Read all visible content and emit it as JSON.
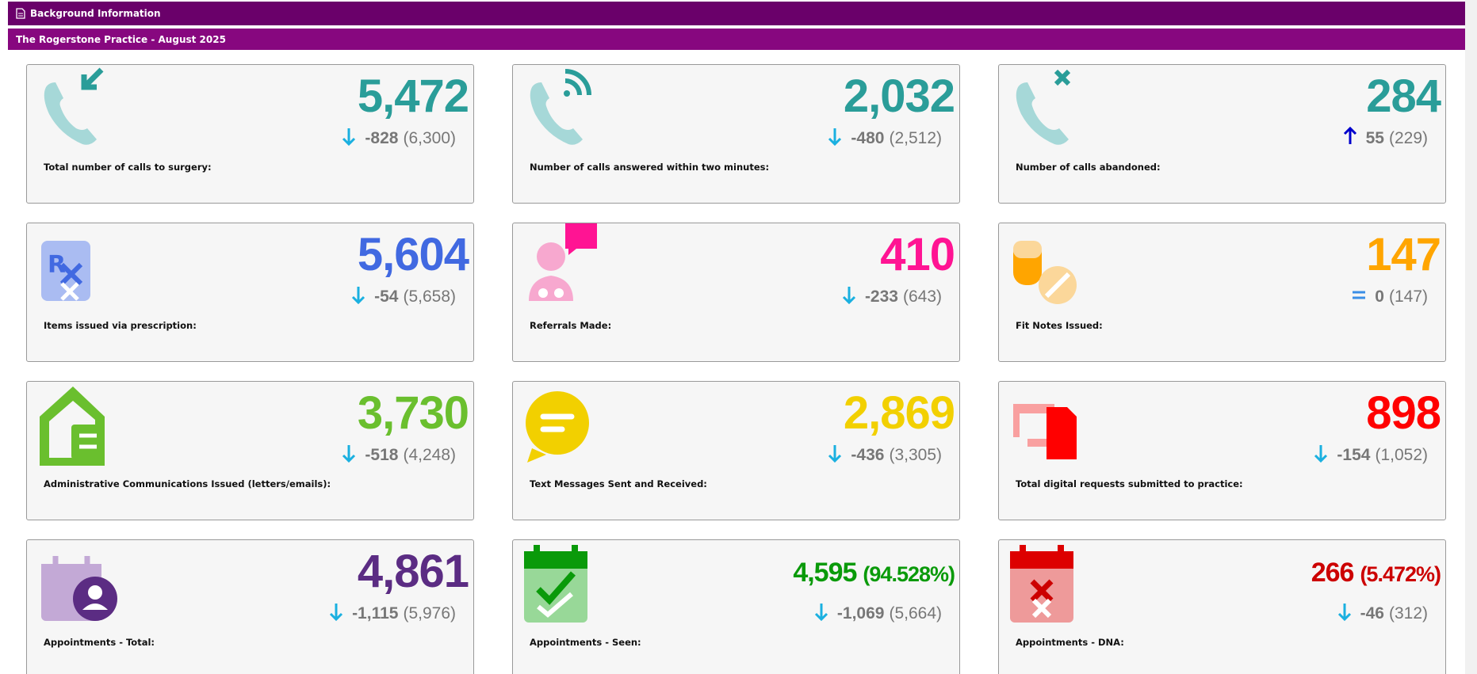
{
  "header": {
    "title": "Background Information",
    "subtitle": "The Rogerstone Practice - August 2025"
  },
  "cards": [
    {
      "label": "Total number of calls to surgery:",
      "value": "5,472",
      "change": "-828",
      "previous": "(6,300)",
      "trend": "down",
      "color": "#2a9d99"
    },
    {
      "label": "Number of calls answered within two minutes:",
      "value": "2,032",
      "change": "-480",
      "previous": "(2,512)",
      "trend": "down",
      "color": "#2a9d99"
    },
    {
      "label": "Number of calls abandoned:",
      "value": "284",
      "change": "55",
      "previous": "(229)",
      "trend": "up",
      "color": "#2a9d99"
    },
    {
      "label": "Items issued via prescription:",
      "value": "5,604",
      "change": "-54",
      "previous": "(5,658)",
      "trend": "down",
      "color": "#4169e1"
    },
    {
      "label": "Referrals Made:",
      "value": "410",
      "change": "-233",
      "previous": "(643)",
      "trend": "down",
      "color": "#ff1493"
    },
    {
      "label": "Fit Notes Issued:",
      "value": "147",
      "change": "0",
      "previous": "(147)",
      "trend": "equal",
      "color": "#ffa500"
    },
    {
      "label": "Administrative Communications Issued (letters/emails):",
      "value": "3,730",
      "change": "-518",
      "previous": "(4,248)",
      "trend": "down",
      "color": "#6abf2e"
    },
    {
      "label": "Text Messages Sent and Received:",
      "value": "2,869",
      "change": "-436",
      "previous": "(3,305)",
      "trend": "down",
      "color": "#f2d000"
    },
    {
      "label": "Total digital requests submitted to practice:",
      "value": "898",
      "change": "-154",
      "previous": "(1,052)",
      "trend": "down",
      "color": "#ff0000"
    },
    {
      "label": "Appointments - Total:",
      "value": "4,861",
      "change": "-1,115",
      "previous": "(5,976)",
      "trend": "down",
      "color": "#5b2c83"
    },
    {
      "label": "Appointments - Seen:",
      "value": "4,595",
      "percent": "(94.528%)",
      "change": "-1,069",
      "previous": "(5,664)",
      "trend": "down",
      "color": "#0a9a0a"
    },
    {
      "label": "Appointments - DNA:",
      "value": "266",
      "percent": "(5.472%)",
      "change": "-46",
      "previous": "(312)",
      "trend": "down",
      "color": "#cc0000"
    }
  ]
}
